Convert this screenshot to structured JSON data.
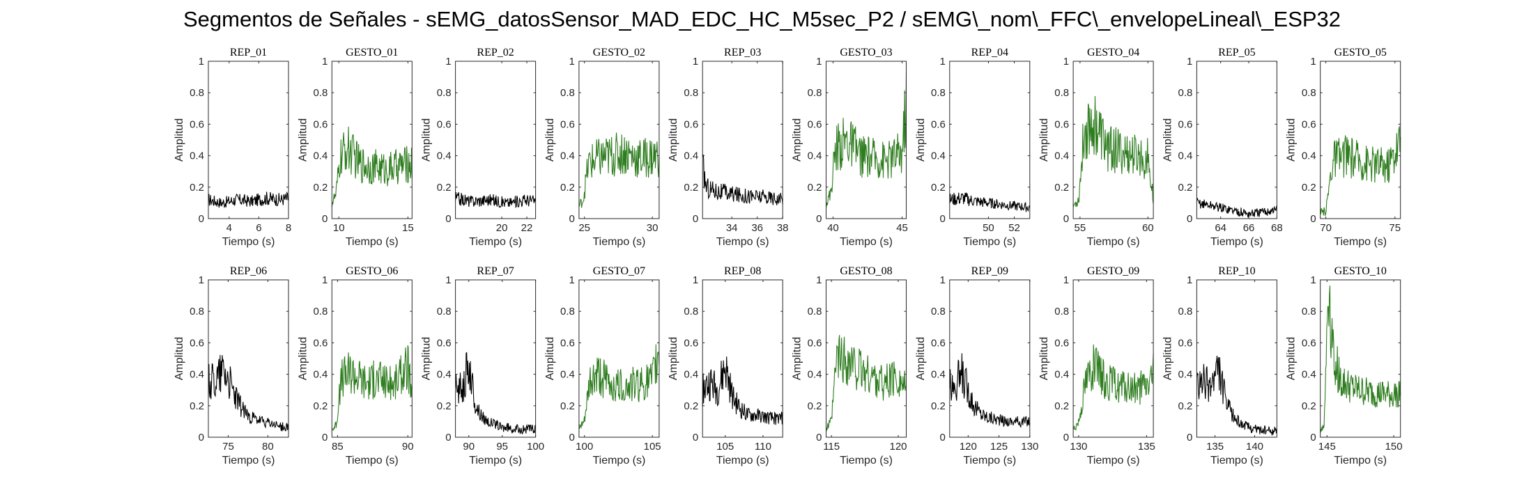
{
  "title": "Segmentos de Señales - sEMG_datosSensor_MAD_EDC_HC_M5sec_P2 / sEMG\\_nom\\_FFC\\_envelopeLineal\\_ESP32",
  "colors": {
    "rep": "#000000",
    "gesto": "#2e7d1f"
  },
  "chart_data": [
    {
      "type": "line",
      "title": "REP_01",
      "xlabel": "Tiempo (s)",
      "ylabel": "Amplitud",
      "xlim": [
        2.6,
        8
      ],
      "ylim": [
        0,
        1
      ],
      "xticks": [
        "4",
        "6",
        "8"
      ],
      "xtick_values": [
        4,
        6,
        8
      ],
      "yticks": [
        "0",
        "0.2",
        "0.4",
        "0.6",
        "0.8",
        "1"
      ],
      "series": [
        {
          "color": "rep",
          "x": [
            2.6,
            3.5,
            4.5,
            5.5,
            6.5,
            7.5,
            8
          ],
          "y": [
            0.12,
            0.1,
            0.12,
            0.11,
            0.13,
            0.12,
            0.13
          ]
        }
      ]
    },
    {
      "type": "line",
      "title": "GESTO_01",
      "xlabel": "Tiempo (s)",
      "ylabel": "Amplitud",
      "xlim": [
        9.5,
        15.3
      ],
      "ylim": [
        0,
        1
      ],
      "xticks": [
        "10",
        "15"
      ],
      "xtick_values": [
        10,
        15
      ],
      "yticks": [
        "0",
        "0.2",
        "0.4",
        "0.6",
        "0.8",
        "1"
      ],
      "series": [
        {
          "color": "gesto",
          "x": [
            9.5,
            9.8,
            10.1,
            10.6,
            11.5,
            12.5,
            13.5,
            14.5,
            15.3
          ],
          "y": [
            0.1,
            0.15,
            0.38,
            0.45,
            0.35,
            0.33,
            0.31,
            0.34,
            0.35
          ]
        }
      ]
    },
    {
      "type": "line",
      "title": "REP_02",
      "xlabel": "Tiempo (s)",
      "ylabel": "Amplitud",
      "xlim": [
        16.3,
        22.7
      ],
      "ylim": [
        0,
        1
      ],
      "xticks": [
        "20",
        "22"
      ],
      "xtick_values": [
        20,
        22
      ],
      "yticks": [
        "0",
        "0.2",
        "0.4",
        "0.6",
        "0.8",
        "1"
      ],
      "series": [
        {
          "color": "rep",
          "x": [
            16.3,
            17.5,
            19,
            20.5,
            22,
            22.7
          ],
          "y": [
            0.13,
            0.11,
            0.12,
            0.1,
            0.12,
            0.11
          ]
        }
      ]
    },
    {
      "type": "line",
      "title": "GESTO_02",
      "xlabel": "Tiempo (s)",
      "ylabel": "Amplitud",
      "xlim": [
        24.6,
        30.5
      ],
      "ylim": [
        0,
        1
      ],
      "xticks": [
        "25",
        "30"
      ],
      "xtick_values": [
        25,
        30
      ],
      "yticks": [
        "0",
        "0.2",
        "0.4",
        "0.6",
        "0.8",
        "1"
      ],
      "series": [
        {
          "color": "gesto",
          "x": [
            24.6,
            24.9,
            25.3,
            26,
            27,
            28,
            29,
            30.5
          ],
          "y": [
            0.08,
            0.12,
            0.35,
            0.38,
            0.4,
            0.42,
            0.38,
            0.4
          ]
        }
      ]
    },
    {
      "type": "line",
      "title": "REP_03",
      "xlabel": "Tiempo (s)",
      "ylabel": "Amplitud",
      "xlim": [
        31.7,
        38
      ],
      "ylim": [
        0,
        1
      ],
      "xticks": [
        "34",
        "36",
        "38"
      ],
      "xtick_values": [
        34,
        36,
        38
      ],
      "yticks": [
        "0",
        "0.2",
        "0.4",
        "0.6",
        "0.8",
        "1"
      ],
      "series": [
        {
          "color": "rep",
          "x": [
            31.7,
            32,
            33,
            34.5,
            36,
            37.5,
            38
          ],
          "y": [
            0.33,
            0.2,
            0.17,
            0.15,
            0.14,
            0.13,
            0.12
          ]
        }
      ]
    },
    {
      "type": "line",
      "title": "GESTO_03",
      "xlabel": "Tiempo (s)",
      "ylabel": "Amplitud",
      "xlim": [
        39.5,
        45.3
      ],
      "ylim": [
        0,
        1
      ],
      "xticks": [
        "40",
        "45"
      ],
      "xtick_values": [
        40,
        45
      ],
      "yticks": [
        "0",
        "0.2",
        "0.4",
        "0.6",
        "0.8",
        "1"
      ],
      "series": [
        {
          "color": "gesto",
          "x": [
            39.5,
            39.8,
            40.2,
            41,
            42,
            43,
            44,
            45,
            45.3
          ],
          "y": [
            0.1,
            0.15,
            0.45,
            0.5,
            0.4,
            0.38,
            0.37,
            0.42,
            0.75
          ]
        }
      ]
    },
    {
      "type": "line",
      "title": "REP_04",
      "xlabel": "Tiempo (s)",
      "ylabel": "Amplitud",
      "xlim": [
        47,
        53.2
      ],
      "ylim": [
        0,
        1
      ],
      "xticks": [
        "50",
        "52"
      ],
      "xtick_values": [
        50,
        52
      ],
      "yticks": [
        "0",
        "0.2",
        "0.4",
        "0.6",
        "0.8",
        "1"
      ],
      "series": [
        {
          "color": "rep",
          "x": [
            47,
            48,
            49,
            50,
            51,
            52,
            53.2
          ],
          "y": [
            0.12,
            0.13,
            0.11,
            0.1,
            0.09,
            0.08,
            0.07
          ]
        }
      ]
    },
    {
      "type": "line",
      "title": "GESTO_04",
      "xlabel": "Tiempo (s)",
      "ylabel": "Amplitud",
      "xlim": [
        54.5,
        60.4
      ],
      "ylim": [
        0,
        1
      ],
      "xticks": [
        "55",
        "60"
      ],
      "xtick_values": [
        55,
        60
      ],
      "yticks": [
        "0",
        "0.2",
        "0.4",
        "0.6",
        "0.8",
        "1"
      ],
      "series": [
        {
          "color": "gesto",
          "x": [
            54.5,
            54.9,
            55.3,
            56,
            57,
            58,
            59,
            60,
            60.4
          ],
          "y": [
            0.08,
            0.12,
            0.55,
            0.62,
            0.45,
            0.42,
            0.4,
            0.38,
            0.12
          ]
        }
      ]
    },
    {
      "type": "line",
      "title": "REP_05",
      "xlabel": "Tiempo (s)",
      "ylabel": "Amplitud",
      "xlim": [
        62.3,
        68
      ],
      "ylim": [
        0,
        1
      ],
      "xticks": [
        "64",
        "66",
        "68"
      ],
      "xtick_values": [
        64,
        66,
        68
      ],
      "yticks": [
        "0",
        "0.2",
        "0.4",
        "0.6",
        "0.8",
        "1"
      ],
      "series": [
        {
          "color": "rep",
          "x": [
            62.3,
            63,
            64,
            65,
            66,
            67,
            68
          ],
          "y": [
            0.1,
            0.09,
            0.07,
            0.05,
            0.03,
            0.04,
            0.06
          ]
        }
      ]
    },
    {
      "type": "line",
      "title": "GESTO_05",
      "xlabel": "Tiempo (s)",
      "ylabel": "Amplitud",
      "xlim": [
        69.6,
        75.4
      ],
      "ylim": [
        0,
        1
      ],
      "xticks": [
        "70",
        "75"
      ],
      "xtick_values": [
        70,
        75
      ],
      "yticks": [
        "0",
        "0.2",
        "0.4",
        "0.6",
        "0.8",
        "1"
      ],
      "series": [
        {
          "color": "gesto",
          "x": [
            69.6,
            70,
            70.5,
            71.5,
            72.5,
            73.5,
            74.5,
            75.4
          ],
          "y": [
            0.03,
            0.05,
            0.38,
            0.4,
            0.37,
            0.35,
            0.34,
            0.5
          ]
        }
      ]
    },
    {
      "type": "line",
      "title": "REP_06",
      "xlabel": "Tiempo (s)",
      "ylabel": "Amplitud",
      "xlim": [
        72.5,
        82.6
      ],
      "ylim": [
        0,
        1
      ],
      "xticks": [
        "75",
        "80"
      ],
      "xtick_values": [
        75,
        80
      ],
      "yticks": [
        "0",
        "0.2",
        "0.4",
        "0.6",
        "0.8",
        "1"
      ],
      "series": [
        {
          "color": "rep",
          "x": [
            72.5,
            73.5,
            74.5,
            75.5,
            76.5,
            77.5,
            78.5,
            80,
            81.5,
            82.6
          ],
          "y": [
            0.35,
            0.38,
            0.45,
            0.3,
            0.2,
            0.14,
            0.11,
            0.09,
            0.07,
            0.06
          ]
        }
      ]
    },
    {
      "type": "line",
      "title": "GESTO_06",
      "xlabel": "Tiempo (s)",
      "ylabel": "Amplitud",
      "xlim": [
        84.6,
        90.3
      ],
      "ylim": [
        0,
        1
      ],
      "xticks": [
        "85",
        "90"
      ],
      "xtick_values": [
        85,
        90
      ],
      "yticks": [
        "0",
        "0.2",
        "0.4",
        "0.6",
        "0.8",
        "1"
      ],
      "series": [
        {
          "color": "gesto",
          "x": [
            84.6,
            84.9,
            85.3,
            86,
            87,
            88,
            89,
            90,
            90.3
          ],
          "y": [
            0.05,
            0.08,
            0.38,
            0.42,
            0.35,
            0.37,
            0.33,
            0.45,
            0.25
          ]
        }
      ]
    },
    {
      "type": "line",
      "title": "REP_07",
      "xlabel": "Tiempo (s)",
      "ylabel": "Amplitud",
      "xlim": [
        88,
        100
      ],
      "ylim": [
        0,
        1
      ],
      "xticks": [
        "90",
        "95",
        "100"
      ],
      "xtick_values": [
        90,
        95,
        100
      ],
      "yticks": [
        "0",
        "0.2",
        "0.4",
        "0.6",
        "0.8",
        "1"
      ],
      "series": [
        {
          "color": "rep",
          "x": [
            88,
            89,
            90,
            91,
            92,
            93,
            94,
            95,
            96,
            97,
            98
          ],
          "y": [
            0.3,
            0.32,
            0.45,
            0.2,
            0.13,
            0.1,
            0.08,
            0.06,
            0.06,
            0.05,
            0.05
          ]
        }
      ]
    },
    {
      "type": "line",
      "title": "GESTO_07",
      "xlabel": "Tiempo (s)",
      "ylabel": "Amplitud",
      "xlim": [
        99.6,
        105.5
      ],
      "ylim": [
        0,
        1
      ],
      "xticks": [
        "100",
        "105"
      ],
      "xtick_values": [
        100,
        105
      ],
      "yticks": [
        "0",
        "0.2",
        "0.4",
        "0.6",
        "0.8",
        "1"
      ],
      "series": [
        {
          "color": "gesto",
          "x": [
            99.6,
            100,
            100.4,
            101,
            102,
            103,
            104,
            105,
            105.5
          ],
          "y": [
            0.05,
            0.1,
            0.35,
            0.4,
            0.33,
            0.32,
            0.34,
            0.36,
            0.55
          ]
        }
      ]
    },
    {
      "type": "line",
      "title": "REP_08",
      "xlabel": "Tiempo (s)",
      "ylabel": "Amplitud",
      "xlim": [
        102,
        112.6
      ],
      "ylim": [
        0,
        1
      ],
      "xticks": [
        "105",
        "110"
      ],
      "xtick_values": [
        105,
        110
      ],
      "yticks": [
        "0",
        "0.2",
        "0.4",
        "0.6",
        "0.8",
        "1"
      ],
      "series": [
        {
          "color": "rep",
          "x": [
            102,
            103,
            104,
            105,
            106,
            107,
            108,
            109,
            110,
            111,
            112.6
          ],
          "y": [
            0.3,
            0.35,
            0.3,
            0.45,
            0.25,
            0.18,
            0.14,
            0.14,
            0.13,
            0.12,
            0.12
          ]
        }
      ]
    },
    {
      "type": "line",
      "title": "GESTO_08",
      "xlabel": "Tiempo (s)",
      "ylabel": "Amplitud",
      "xlim": [
        114.6,
        120.6
      ],
      "ylim": [
        0,
        1
      ],
      "xticks": [
        "115",
        "120"
      ],
      "xtick_values": [
        115,
        120
      ],
      "yticks": [
        "0",
        "0.2",
        "0.4",
        "0.6",
        "0.8",
        "1"
      ],
      "series": [
        {
          "color": "gesto",
          "x": [
            114.6,
            115,
            115.4,
            116,
            117,
            118,
            119,
            120,
            120.6
          ],
          "y": [
            0.05,
            0.1,
            0.5,
            0.48,
            0.42,
            0.38,
            0.35,
            0.37,
            0.3
          ]
        }
      ]
    },
    {
      "type": "line",
      "title": "REP_09",
      "xlabel": "Tiempo (s)",
      "ylabel": "Amplitud",
      "xlim": [
        117,
        130
      ],
      "ylim": [
        0,
        1
      ],
      "xticks": [
        "120",
        "125",
        "130"
      ],
      "xtick_values": [
        120,
        125,
        130
      ],
      "yticks": [
        "0",
        "0.2",
        "0.4",
        "0.6",
        "0.8",
        "1"
      ],
      "series": [
        {
          "color": "rep",
          "x": [
            117,
            118,
            119,
            120,
            121,
            122,
            123,
            124,
            125,
            126,
            127,
            128
          ],
          "y": [
            0.32,
            0.35,
            0.4,
            0.3,
            0.2,
            0.15,
            0.13,
            0.12,
            0.11,
            0.1,
            0.1,
            0.1
          ]
        }
      ]
    },
    {
      "type": "line",
      "title": "GESTO_09",
      "xlabel": "Tiempo (s)",
      "ylabel": "Amplitud",
      "xlim": [
        129.6,
        135.5
      ],
      "ylim": [
        0,
        1
      ],
      "xticks": [
        "130",
        "135"
      ],
      "xtick_values": [
        130,
        135
      ],
      "yticks": [
        "0",
        "0.2",
        "0.4",
        "0.6",
        "0.8",
        "1"
      ],
      "series": [
        {
          "color": "gesto",
          "x": [
            129.6,
            130,
            130.5,
            131,
            132,
            133,
            134,
            135,
            135.5
          ],
          "y": [
            0.05,
            0.1,
            0.35,
            0.45,
            0.35,
            0.32,
            0.3,
            0.33,
            0.4
          ]
        }
      ]
    },
    {
      "type": "line",
      "title": "REP_10",
      "xlabel": "Tiempo (s)",
      "ylabel": "Amplitud",
      "xlim": [
        132.7,
        142.8
      ],
      "ylim": [
        0,
        1
      ],
      "xticks": [
        "135",
        "140"
      ],
      "xtick_values": [
        135,
        140
      ],
      "yticks": [
        "0",
        "0.2",
        "0.4",
        "0.6",
        "0.8",
        "1"
      ],
      "series": [
        {
          "color": "rep",
          "x": [
            132.7,
            133.5,
            134.5,
            135.5,
            136.5,
            137.5,
            138.5,
            139.5,
            140.5,
            141.5,
            142.8
          ],
          "y": [
            0.3,
            0.35,
            0.33,
            0.42,
            0.2,
            0.12,
            0.08,
            0.06,
            0.05,
            0.04,
            0.04
          ]
        }
      ]
    },
    {
      "type": "line",
      "title": "GESTO_10",
      "xlabel": "Tiempo (s)",
      "ylabel": "Amplitud",
      "xlim": [
        144.5,
        150.5
      ],
      "ylim": [
        0,
        1
      ],
      "xticks": [
        "145",
        "150"
      ],
      "xtick_values": [
        145,
        150
      ],
      "yticks": [
        "0",
        "0.2",
        "0.4",
        "0.6",
        "0.8",
        "1"
      ],
      "series": [
        {
          "color": "gesto",
          "x": [
            144.5,
            144.8,
            145.1,
            145.4,
            146,
            147,
            148,
            149,
            150,
            150.5
          ],
          "y": [
            0.05,
            0.08,
            1.0,
            0.6,
            0.35,
            0.3,
            0.28,
            0.27,
            0.26,
            0.3
          ]
        }
      ]
    }
  ]
}
